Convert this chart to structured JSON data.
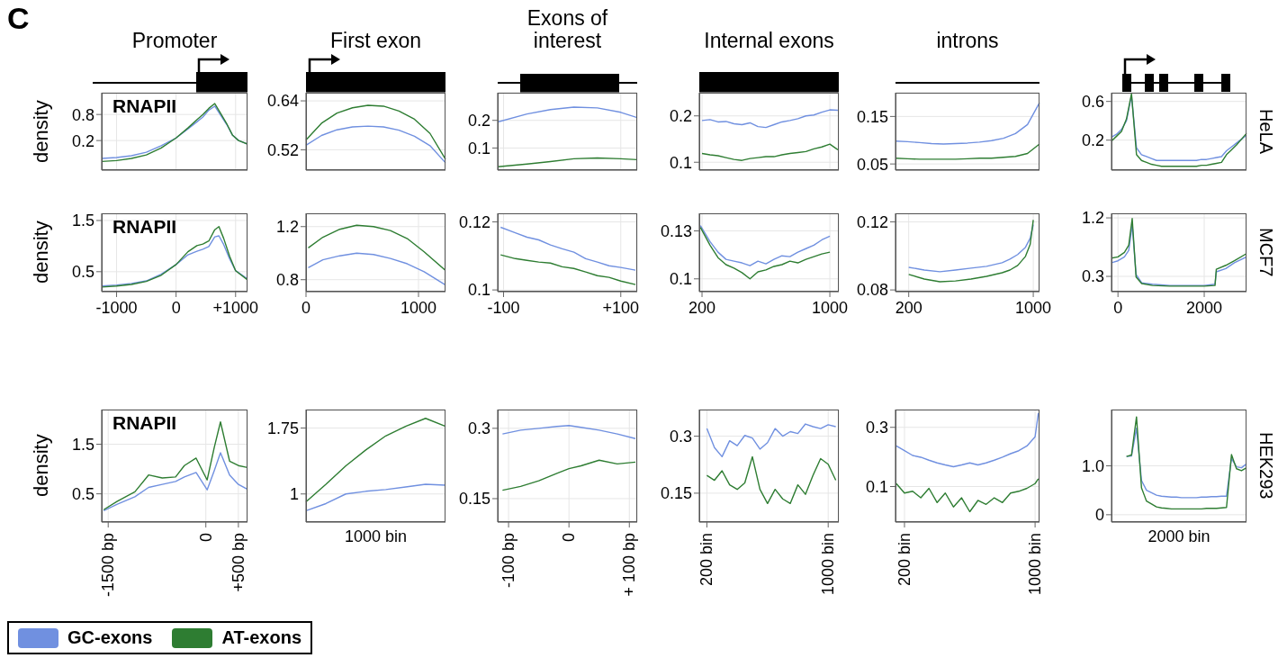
{
  "chart_data": [
    {
      "type": "line",
      "title": "Promoter",
      "ylabel": "density",
      "annotations": [
        "RNAPII",
        "C"
      ],
      "x": [
        -1250,
        -1000,
        -750,
        -500,
        -250,
        0,
        200,
        350,
        450,
        550,
        650,
        750,
        850,
        950,
        1050,
        1200
      ],
      "xlim": [
        -1250,
        1200
      ],
      "xticks": [
        -1000,
        0,
        1000
      ],
      "ylim": [
        -0.48,
        1.3
      ],
      "yticks": [
        0.2,
        0.8
      ],
      "tick_labels": "y",
      "grid": true,
      "series": [
        {
          "color": "#7090e0",
          "values": [
            -0.21,
            -0.19,
            -0.15,
            -0.07,
            0.08,
            0.26,
            0.47,
            0.63,
            0.74,
            0.9,
            0.99,
            0.78,
            0.57,
            0.32,
            0.2,
            0.12
          ]
        },
        {
          "color": "#2e7d32",
          "values": [
            -0.28,
            -0.26,
            -0.21,
            -0.13,
            0.03,
            0.26,
            0.49,
            0.68,
            0.8,
            0.94,
            1.05,
            0.82,
            0.59,
            0.32,
            0.2,
            0.12
          ]
        }
      ]
    },
    {
      "type": "line",
      "title": "First exon",
      "categories": [
        null,
        null,
        null,
        null,
        null,
        null,
        null,
        null,
        null,
        null
      ],
      "ylim": [
        0.47,
        0.66
      ],
      "yticks": [
        0.52,
        0.64
      ],
      "grid": "y",
      "series": [
        {
          "color": "#7090e0",
          "values": [
            0.531,
            0.555,
            0.569,
            0.576,
            0.578,
            0.576,
            0.568,
            0.553,
            0.53,
            0.488
          ]
        },
        {
          "color": "#2e7d32",
          "values": [
            0.544,
            0.585,
            0.61,
            0.623,
            0.629,
            0.627,
            0.615,
            0.595,
            0.56,
            0.497
          ]
        }
      ]
    },
    {
      "type": "line",
      "title": "Exons of interest",
      "x": [
        -110,
        -60,
        -20,
        20,
        60,
        100,
        128
      ],
      "xlim": [
        -110,
        128
      ],
      "xticks": [
        -100,
        100
      ],
      "ylim": [
        0.02,
        0.3
      ],
      "yticks": [
        0.1,
        0.2
      ],
      "tick_labels": "y",
      "grid": true,
      "series": [
        {
          "color": "#7090e0",
          "values": [
            0.194,
            0.223,
            0.239,
            0.248,
            0.245,
            0.229,
            0.21
          ]
        },
        {
          "color": "#2e7d32",
          "values": [
            0.032,
            0.042,
            0.051,
            0.061,
            0.064,
            0.061,
            0.058
          ]
        }
      ]
    },
    {
      "type": "line",
      "title": "Internal exons",
      "x": [
        200,
        250,
        300,
        350,
        400,
        450,
        500,
        550,
        600,
        650,
        700,
        750,
        800,
        850,
        900,
        950,
        1000,
        1050
      ],
      "xlim": [
        183,
        1056
      ],
      "xticks": [
        200,
        1000
      ],
      "ylim": [
        0.083,
        0.25
      ],
      "yticks": [
        0.1,
        0.2
      ],
      "tick_labels": "y",
      "grid": true,
      "series": [
        {
          "color": "#7090e0",
          "values": [
            0.19,
            0.192,
            0.187,
            0.188,
            0.183,
            0.181,
            0.185,
            0.177,
            0.175,
            0.181,
            0.187,
            0.19,
            0.194,
            0.2,
            0.202,
            0.208,
            0.213,
            0.212
          ]
        },
        {
          "color": "#2e7d32",
          "values": [
            0.119,
            0.116,
            0.114,
            0.11,
            0.106,
            0.104,
            0.108,
            0.11,
            0.112,
            0.112,
            0.116,
            0.119,
            0.121,
            0.123,
            0.129,
            0.133,
            0.139,
            0.127
          ]
        }
      ]
    },
    {
      "type": "line",
      "title": "introns",
      "categories": [
        null,
        null,
        null,
        null,
        null,
        null,
        null,
        null,
        null,
        null,
        null,
        null,
        null
      ],
      "ylim": [
        0.037,
        0.2
      ],
      "yticks": [
        0.05,
        0.15
      ],
      "grid": "y",
      "series": [
        {
          "color": "#7090e0",
          "values": [
            0.098,
            0.097,
            0.095,
            0.093,
            0.092,
            0.093,
            0.094,
            0.096,
            0.099,
            0.104,
            0.114,
            0.133,
            0.179
          ]
        },
        {
          "color": "#2e7d32",
          "values": [
            0.062,
            0.061,
            0.06,
            0.06,
            0.06,
            0.06,
            0.061,
            0.062,
            0.062,
            0.064,
            0.066,
            0.072,
            0.092
          ]
        }
      ]
    },
    {
      "type": "line",
      "y2label": "HeLA",
      "categories": [
        null,
        null,
        null,
        null,
        null,
        null,
        null,
        null,
        null,
        null,
        null,
        null,
        null,
        null,
        null,
        null,
        null,
        null,
        null,
        null,
        null,
        null,
        null,
        null,
        null,
        null,
        null,
        null
      ],
      "ylim": [
        -0.11,
        0.69
      ],
      "yticks": [
        0.2,
        0.6
      ],
      "grid": "y",
      "series": [
        {
          "color": "#7090e0",
          "values": [
            0.23,
            0.26,
            0.31,
            0.4,
            0.66,
            0.12,
            0.05,
            0.03,
            0.01,
            -0.01,
            -0.01,
            -0.01,
            -0.01,
            -0.01,
            -0.01,
            -0.01,
            -0.01,
            -0.01,
            0.0,
            0.0,
            0.01,
            0.02,
            0.03,
            0.09,
            0.13,
            0.17,
            0.21,
            0.25
          ]
        },
        {
          "color": "#2e7d32",
          "values": [
            0.19,
            0.24,
            0.29,
            0.42,
            0.68,
            0.05,
            -0.01,
            -0.03,
            -0.05,
            -0.06,
            -0.07,
            -0.07,
            -0.07,
            -0.07,
            -0.07,
            -0.07,
            -0.07,
            -0.07,
            -0.06,
            -0.06,
            -0.05,
            -0.04,
            -0.03,
            0.05,
            0.1,
            0.15,
            0.21,
            0.27
          ]
        }
      ]
    },
    {
      "type": "line",
      "ylabel": "density",
      "annotations": [
        "RNAPII"
      ],
      "x": [
        -1250,
        -1000,
        -750,
        -500,
        -250,
        0,
        200,
        350,
        450,
        550,
        650,
        720,
        800,
        900,
        1000,
        1200
      ],
      "xlim": [
        -1250,
        1200
      ],
      "xticks": [
        -1000,
        0,
        {
          "value": 1000,
          "label": "+1000"
        }
      ],
      "ylim": [
        0.11,
        1.64
      ],
      "yticks": [
        0.5,
        1.5
      ],
      "grid": true,
      "series": [
        {
          "color": "#7090e0",
          "values": [
            0.22,
            0.24,
            0.27,
            0.32,
            0.45,
            0.64,
            0.83,
            0.9,
            0.94,
            0.99,
            1.18,
            1.2,
            1.03,
            0.75,
            0.52,
            0.36
          ]
        },
        {
          "color": "#2e7d32",
          "values": [
            0.2,
            0.22,
            0.25,
            0.31,
            0.43,
            0.64,
            0.89,
            1.01,
            1.04,
            1.1,
            1.32,
            1.38,
            1.15,
            0.8,
            0.52,
            0.34
          ]
        }
      ]
    },
    {
      "type": "line",
      "x": [
        20,
        150,
        300,
        450,
        600,
        750,
        900,
        1050,
        1240
      ],
      "xlim": [
        0,
        1240
      ],
      "xticks": [
        0,
        1000
      ],
      "ylim": [
        0.71,
        1.3
      ],
      "yticks": [
        0.8,
        1.2
      ],
      "grid": true,
      "series": [
        {
          "color": "#7090e0",
          "values": [
            0.89,
            0.95,
            0.98,
            1.0,
            0.99,
            0.96,
            0.92,
            0.86,
            0.76
          ]
        },
        {
          "color": "#2e7d32",
          "values": [
            1.04,
            1.12,
            1.18,
            1.21,
            1.2,
            1.17,
            1.11,
            1.01,
            0.87
          ]
        }
      ]
    },
    {
      "type": "line",
      "x": [
        -105,
        -80,
        -60,
        -40,
        -20,
        0,
        20,
        40,
        60,
        80,
        100,
        125
      ],
      "xlim": [
        -110,
        128
      ],
      "xticks": [
        -100,
        {
          "value": 100,
          "label": "+100"
        }
      ],
      "ylim": [
        0.0995,
        0.1225
      ],
      "yticks": [
        0.1,
        0.12
      ],
      "grid": true,
      "series": [
        {
          "color": "#7090e0",
          "values": [
            0.1184,
            0.1168,
            0.1155,
            0.1147,
            0.1132,
            0.1121,
            0.1111,
            0.1092,
            0.1082,
            0.1071,
            0.1066,
            0.1058
          ]
        },
        {
          "color": "#2e7d32",
          "values": [
            0.1103,
            0.1092,
            0.1087,
            0.1082,
            0.1079,
            0.1068,
            0.1063,
            0.1053,
            0.1042,
            0.1037,
            0.1026,
            0.1016
          ]
        }
      ]
    },
    {
      "type": "line",
      "x": [
        190,
        250,
        300,
        350,
        400,
        450,
        500,
        550,
        600,
        650,
        700,
        750,
        800,
        850,
        900,
        950,
        1000
      ],
      "xlim": [
        183,
        1056
      ],
      "xticks": [
        200,
        1000
      ],
      "ylim": [
        0.092,
        0.141
      ],
      "yticks": [
        0.1,
        0.13
      ],
      "grid": true,
      "series": [
        {
          "color": "#7090e0",
          "values": [
            0.1333,
            0.1233,
            0.1167,
            0.1122,
            0.1111,
            0.11,
            0.1083,
            0.1111,
            0.1094,
            0.1122,
            0.1144,
            0.1139,
            0.1167,
            0.1189,
            0.1211,
            0.1244,
            0.1267
          ]
        },
        {
          "color": "#2e7d32",
          "values": [
            0.1322,
            0.1211,
            0.1133,
            0.1089,
            0.1067,
            0.1039,
            0.1,
            0.1044,
            0.1056,
            0.1078,
            0.1089,
            0.1111,
            0.11,
            0.1122,
            0.1139,
            0.1156,
            0.1167
          ]
        }
      ]
    },
    {
      "type": "line",
      "x": [
        200,
        300,
        400,
        500,
        600,
        700,
        800,
        850,
        900,
        950,
        980,
        1000
      ],
      "xlim": [
        115,
        1040
      ],
      "xticks": [
        200,
        1000
      ],
      "ylim": [
        0.079,
        0.125
      ],
      "yticks": [
        0.08,
        0.12
      ],
      "grid": true,
      "series": [
        {
          "color": "#7090e0",
          "values": [
            0.0933,
            0.0917,
            0.0907,
            0.0917,
            0.0928,
            0.0939,
            0.096,
            0.0981,
            0.1008,
            0.1051,
            0.1104,
            0.1184
          ]
        },
        {
          "color": "#2e7d32",
          "values": [
            0.0891,
            0.0864,
            0.0848,
            0.0853,
            0.0864,
            0.088,
            0.0901,
            0.0917,
            0.0944,
            0.0997,
            0.1067,
            0.1211
          ]
        }
      ]
    },
    {
      "type": "line",
      "y2label": "MCF7",
      "x": [
        -150,
        0,
        150,
        250,
        330,
        420,
        550,
        800,
        1200,
        1600,
        2000,
        2250,
        2280,
        2500,
        2700,
        2980
      ],
      "xlim": [
        -150,
        2980
      ],
      "xticks": [
        0,
        2000
      ],
      "ylim": [
        0.065,
        1.27
      ],
      "yticks": [
        0.3,
        1.2
      ],
      "grid": true,
      "series": [
        {
          "color": "#7090e0",
          "values": [
            0.51,
            0.54,
            0.6,
            0.7,
            1.09,
            0.33,
            0.2,
            0.18,
            0.16,
            0.16,
            0.16,
            0.18,
            0.37,
            0.42,
            0.51,
            0.6
          ]
        },
        {
          "color": "#2e7d32",
          "values": [
            0.58,
            0.6,
            0.67,
            0.78,
            1.19,
            0.29,
            0.19,
            0.16,
            0.15,
            0.15,
            0.15,
            0.16,
            0.41,
            0.47,
            0.54,
            0.65
          ]
        }
      ]
    },
    {
      "type": "line",
      "ylabel": "density",
      "annotations": [
        "RNAPII"
      ],
      "legend": "bottom left",
      "x": [
        -1570,
        -1360,
        -1090,
        -880,
        -670,
        -465,
        -330,
        -150,
        20,
        130,
        225,
        365,
        500,
        640
      ],
      "xlim": [
        -1600,
        640
      ],
      "xticks": [
        {
          "value": -1500,
          "label": "-1500 bp"
        },
        0,
        {
          "value": 500,
          "label": "+500 bp"
        }
      ],
      "ylim": [
        -0.07,
        2.2
      ],
      "yticks": [
        0.5,
        1.5
      ],
      "grid": true,
      "series": [
        {
          "name": "GC-exons",
          "color": "#7090e0",
          "values": [
            0.16,
            0.29,
            0.44,
            0.63,
            0.69,
            0.75,
            0.84,
            0.93,
            0.58,
            0.97,
            1.33,
            0.88,
            0.69,
            0.59
          ]
        },
        {
          "name": "AT-exons",
          "color": "#2e7d32",
          "values": [
            0.18,
            0.35,
            0.54,
            0.88,
            0.82,
            0.84,
            1.07,
            1.22,
            0.78,
            1.44,
            1.95,
            1.16,
            1.07,
            1.03
          ]
        }
      ]
    },
    {
      "type": "line",
      "annotations": [
        "1000 bin"
      ],
      "categories": [
        null,
        null,
        null,
        null,
        null,
        null,
        null,
        null
      ],
      "ylim": [
        0.68,
        1.96
      ],
      "yticks": [
        1,
        1.75
      ],
      "grid": "y",
      "series": [
        {
          "color": "#7090e0",
          "values": [
            0.81,
            0.89,
            1.0,
            1.03,
            1.05,
            1.08,
            1.11,
            1.1
          ]
        },
        {
          "color": "#2e7d32",
          "values": [
            0.91,
            1.11,
            1.32,
            1.5,
            1.66,
            1.77,
            1.86,
            1.77
          ]
        }
      ]
    },
    {
      "type": "line",
      "x": [
        -110,
        -80,
        -50,
        -20,
        0,
        20,
        50,
        80,
        110
      ],
      "xlim": [
        -118,
        113
      ],
      "xticks": [
        {
          "value": -100,
          "label": "-100 bp"
        },
        0,
        {
          "value": 100,
          "label": "+ 100 bp"
        }
      ],
      "ylim": [
        0.1,
        0.34
      ],
      "yticks": [
        0.15,
        0.3
      ],
      "grid": true,
      "series": [
        {
          "color": "#7090e0",
          "values": [
            0.288,
            0.296,
            0.3,
            0.304,
            0.306,
            0.302,
            0.296,
            0.288,
            0.278
          ]
        },
        {
          "color": "#2e7d32",
          "values": [
            0.168,
            0.176,
            0.188,
            0.204,
            0.214,
            0.22,
            0.232,
            0.224,
            0.228
          ]
        }
      ]
    },
    {
      "type": "line",
      "x": [
        200,
        250,
        300,
        350,
        400,
        450,
        500,
        550,
        600,
        650,
        700,
        750,
        800,
        850,
        900,
        950,
        1000,
        1050
      ],
      "xlim": [
        150,
        1070
      ],
      "xticks": [
        {
          "value": 200,
          "label": "200 bin"
        },
        {
          "value": 1000,
          "label": "1000 bin"
        }
      ],
      "ylim": [
        0.074,
        0.37
      ],
      "yticks": [
        0.15,
        0.3
      ],
      "grid": true,
      "series": [
        {
          "color": "#7090e0",
          "values": [
            0.32,
            0.27,
            0.246,
            0.288,
            0.275,
            0.302,
            0.295,
            0.266,
            0.283,
            0.32,
            0.3,
            0.312,
            0.307,
            0.332,
            0.325,
            0.32,
            0.33,
            0.325
          ]
        },
        {
          "color": "#2e7d32",
          "values": [
            0.197,
            0.184,
            0.209,
            0.172,
            0.16,
            0.177,
            0.246,
            0.16,
            0.123,
            0.16,
            0.135,
            0.123,
            0.172,
            0.147,
            0.197,
            0.241,
            0.226,
            0.184
          ]
        }
      ]
    },
    {
      "type": "line",
      "x": [
        150,
        200,
        250,
        300,
        350,
        400,
        450,
        500,
        550,
        600,
        650,
        700,
        750,
        800,
        850,
        900,
        950,
        1000,
        1020
      ],
      "xlim": [
        145,
        1027
      ],
      "xticks": [
        {
          "value": 200,
          "label": "200 bin"
        },
        {
          "value": 1000,
          "label": "1000 bin"
        }
      ],
      "ylim": [
        -0.02,
        0.36
      ],
      "yticks": [
        0.1,
        0.3
      ],
      "grid": true,
      "series": [
        {
          "color": "#7090e0",
          "values": [
            0.237,
            0.221,
            0.205,
            0.199,
            0.189,
            0.18,
            0.173,
            0.167,
            0.173,
            0.18,
            0.173,
            0.18,
            0.189,
            0.199,
            0.211,
            0.221,
            0.237,
            0.268,
            0.348
          ]
        },
        {
          "color": "#2e7d32",
          "values": [
            0.11,
            0.078,
            0.084,
            0.062,
            0.094,
            0.046,
            0.078,
            0.031,
            0.062,
            0.015,
            0.053,
            0.04,
            0.062,
            0.046,
            0.078,
            0.084,
            0.094,
            0.11,
            0.126
          ]
        }
      ]
    },
    {
      "type": "line",
      "y2label": "HEK293",
      "annotations": [
        "2000 bin"
      ],
      "categories": [
        null,
        null,
        null,
        null,
        null,
        null,
        null,
        null,
        null,
        null,
        null,
        null,
        null,
        null,
        null,
        null,
        null,
        null,
        null,
        null,
        null,
        null,
        null,
        null,
        null,
        null,
        null,
        null
      ],
      "ylim": [
        -0.15,
        2.15
      ],
      "yticks": [
        0,
        {
          "value": 1,
          "label": "1.0"
        }
      ],
      "grid": "y",
      "series": [
        {
          "color": "#7090e0",
          "values": [
            null,
            null,
            null,
            1.19,
            1.2,
            1.77,
            0.7,
            0.5,
            0.45,
            0.4,
            0.38,
            0.37,
            0.36,
            0.36,
            0.35,
            0.35,
            0.35,
            0.35,
            0.36,
            0.36,
            0.37,
            0.37,
            0.38,
            0.38,
            1.15,
            0.98,
            0.96,
            1.04
          ]
        },
        {
          "color": "#2e7d32",
          "values": [
            null,
            null,
            null,
            1.19,
            1.22,
            2.0,
            0.55,
            0.28,
            0.22,
            0.16,
            0.14,
            0.13,
            0.12,
            0.12,
            0.12,
            0.12,
            0.12,
            0.12,
            0.12,
            0.13,
            0.13,
            0.13,
            0.14,
            0.15,
            1.23,
            0.94,
            0.9,
            0.96
          ]
        }
      ]
    }
  ]
}
